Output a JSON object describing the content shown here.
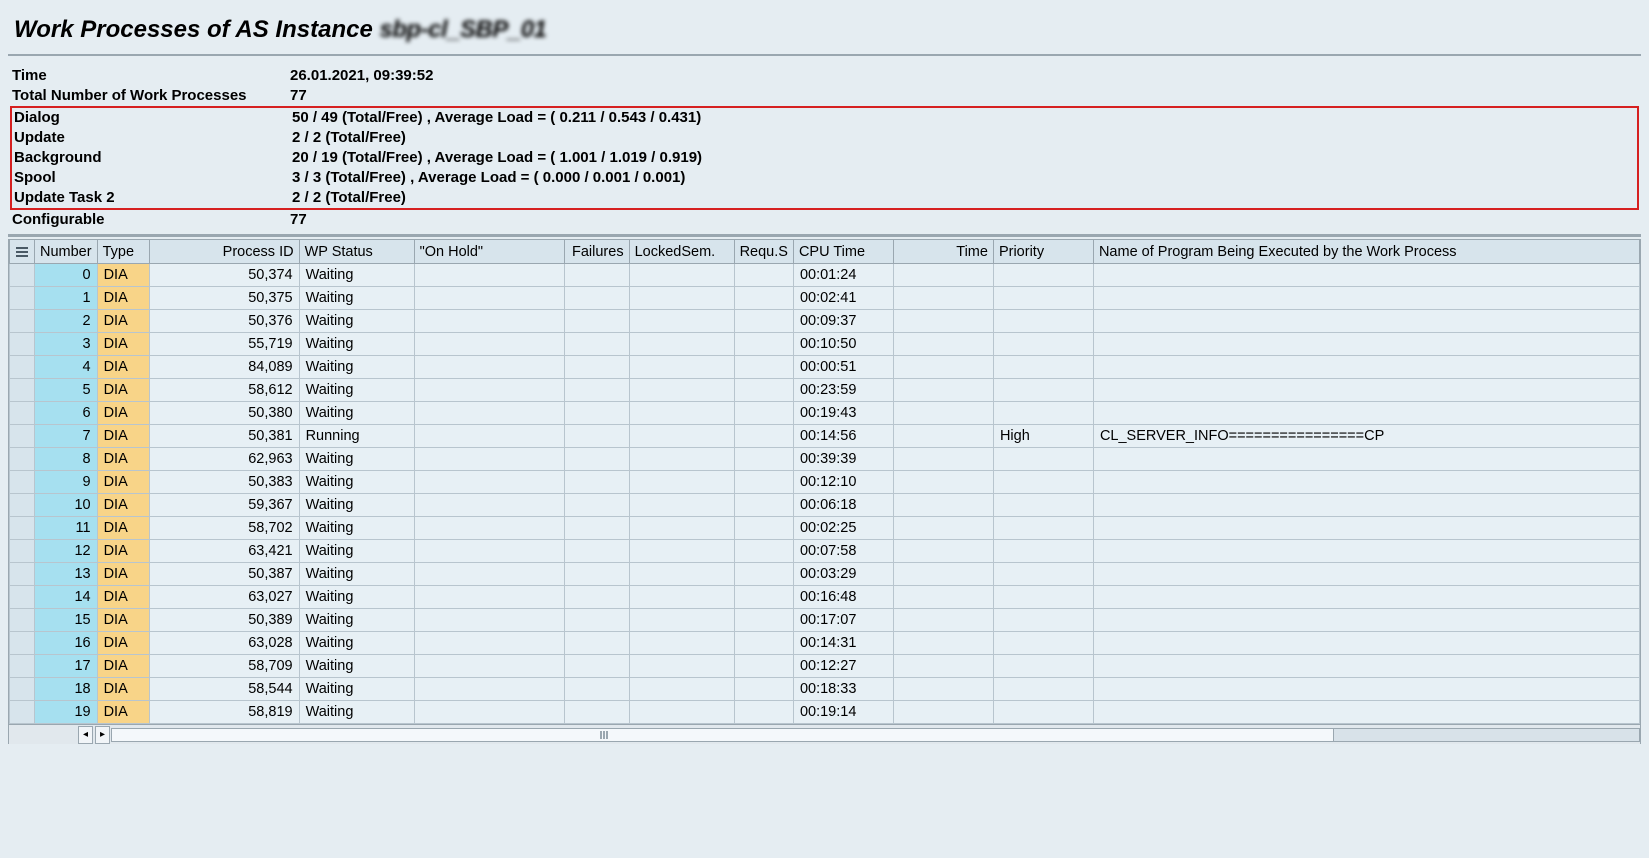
{
  "colors": {
    "page_bg": "#e5edf2",
    "cell_bg": "#e7f0f5",
    "header_bg": "#d7e4ec",
    "num_bg": "#a6e0f0",
    "type_bg": "#f8d488",
    "border": "#9aa7b0",
    "redbox": "#d62020"
  },
  "title": {
    "prefix": "Work Processes of AS Instance ",
    "instance": "sbp-cl_SBP_01"
  },
  "info": {
    "time": {
      "label": "Time",
      "value": "26.01.2021, 09:39:52"
    },
    "total": {
      "label": "Total Number of Work Processes",
      "value": "77"
    },
    "dialog": {
      "label": "Dialog",
      "value": "50 / 49 (Total/Free) , Average Load = ( 0.211 / 0.543 / 0.431)"
    },
    "update": {
      "label": "Update",
      "value": "2 / 2 (Total/Free)"
    },
    "background": {
      "label": "Background",
      "value": "20 / 19 (Total/Free) , Average Load = ( 1.001 / 1.019 / 0.919)"
    },
    "spool": {
      "label": "Spool",
      "value": "3 / 3 (Total/Free) , Average Load = ( 0.000 / 0.001 / 0.001)"
    },
    "update2": {
      "label": "Update Task 2",
      "value": "2 / 2 (Total/Free)"
    },
    "configurable": {
      "label": "Configurable",
      "value": "77"
    }
  },
  "columns": {
    "number": "Number",
    "type": "Type",
    "process_id": "Process ID",
    "wp_status": "WP Status",
    "on_hold": "\"On Hold\"",
    "failures": "Failures",
    "locked_sem": "LockedSem.",
    "requ_s": "Requ.S",
    "cpu_time": "CPU Time",
    "time": "Time",
    "priority": "Priority",
    "program": "Name of Program Being Executed by the Work Process"
  },
  "rows": [
    {
      "num": "0",
      "type": "DIA",
      "pid": "50,374",
      "status": "Waiting",
      "onhold": "",
      "fail": "",
      "locked": "",
      "requs": "",
      "cpu": "00:01:24",
      "time": "",
      "prio": "",
      "prog": ""
    },
    {
      "num": "1",
      "type": "DIA",
      "pid": "50,375",
      "status": "Waiting",
      "onhold": "",
      "fail": "",
      "locked": "",
      "requs": "",
      "cpu": "00:02:41",
      "time": "",
      "prio": "",
      "prog": ""
    },
    {
      "num": "2",
      "type": "DIA",
      "pid": "50,376",
      "status": "Waiting",
      "onhold": "",
      "fail": "",
      "locked": "",
      "requs": "",
      "cpu": "00:09:37",
      "time": "",
      "prio": "",
      "prog": ""
    },
    {
      "num": "3",
      "type": "DIA",
      "pid": "55,719",
      "status": "Waiting",
      "onhold": "",
      "fail": "",
      "locked": "",
      "requs": "",
      "cpu": "00:10:50",
      "time": "",
      "prio": "",
      "prog": ""
    },
    {
      "num": "4",
      "type": "DIA",
      "pid": "84,089",
      "status": "Waiting",
      "onhold": "",
      "fail": "",
      "locked": "",
      "requs": "",
      "cpu": "00:00:51",
      "time": "",
      "prio": "",
      "prog": ""
    },
    {
      "num": "5",
      "type": "DIA",
      "pid": "58,612",
      "status": "Waiting",
      "onhold": "",
      "fail": "",
      "locked": "",
      "requs": "",
      "cpu": "00:23:59",
      "time": "",
      "prio": "",
      "prog": ""
    },
    {
      "num": "6",
      "type": "DIA",
      "pid": "50,380",
      "status": "Waiting",
      "onhold": "",
      "fail": "",
      "locked": "",
      "requs": "",
      "cpu": "00:19:43",
      "time": "",
      "prio": "",
      "prog": ""
    },
    {
      "num": "7",
      "type": "DIA",
      "pid": "50,381",
      "status": "Running",
      "onhold": "",
      "fail": "",
      "locked": "",
      "requs": "",
      "cpu": "00:14:56",
      "time": "",
      "prio": "High",
      "prog": "CL_SERVER_INFO================CP"
    },
    {
      "num": "8",
      "type": "DIA",
      "pid": "62,963",
      "status": "Waiting",
      "onhold": "",
      "fail": "",
      "locked": "",
      "requs": "",
      "cpu": "00:39:39",
      "time": "",
      "prio": "",
      "prog": ""
    },
    {
      "num": "9",
      "type": "DIA",
      "pid": "50,383",
      "status": "Waiting",
      "onhold": "",
      "fail": "",
      "locked": "",
      "requs": "",
      "cpu": "00:12:10",
      "time": "",
      "prio": "",
      "prog": ""
    },
    {
      "num": "10",
      "type": "DIA",
      "pid": "59,367",
      "status": "Waiting",
      "onhold": "",
      "fail": "",
      "locked": "",
      "requs": "",
      "cpu": "00:06:18",
      "time": "",
      "prio": "",
      "prog": ""
    },
    {
      "num": "11",
      "type": "DIA",
      "pid": "58,702",
      "status": "Waiting",
      "onhold": "",
      "fail": "",
      "locked": "",
      "requs": "",
      "cpu": "00:02:25",
      "time": "",
      "prio": "",
      "prog": ""
    },
    {
      "num": "12",
      "type": "DIA",
      "pid": "63,421",
      "status": "Waiting",
      "onhold": "",
      "fail": "",
      "locked": "",
      "requs": "",
      "cpu": "00:07:58",
      "time": "",
      "prio": "",
      "prog": ""
    },
    {
      "num": "13",
      "type": "DIA",
      "pid": "50,387",
      "status": "Waiting",
      "onhold": "",
      "fail": "",
      "locked": "",
      "requs": "",
      "cpu": "00:03:29",
      "time": "",
      "prio": "",
      "prog": ""
    },
    {
      "num": "14",
      "type": "DIA",
      "pid": "63,027",
      "status": "Waiting",
      "onhold": "",
      "fail": "",
      "locked": "",
      "requs": "",
      "cpu": "00:16:48",
      "time": "",
      "prio": "",
      "prog": ""
    },
    {
      "num": "15",
      "type": "DIA",
      "pid": "50,389",
      "status": "Waiting",
      "onhold": "",
      "fail": "",
      "locked": "",
      "requs": "",
      "cpu": "00:17:07",
      "time": "",
      "prio": "",
      "prog": ""
    },
    {
      "num": "16",
      "type": "DIA",
      "pid": "63,028",
      "status": "Waiting",
      "onhold": "",
      "fail": "",
      "locked": "",
      "requs": "",
      "cpu": "00:14:31",
      "time": "",
      "prio": "",
      "prog": ""
    },
    {
      "num": "17",
      "type": "DIA",
      "pid": "58,709",
      "status": "Waiting",
      "onhold": "",
      "fail": "",
      "locked": "",
      "requs": "",
      "cpu": "00:12:27",
      "time": "",
      "prio": "",
      "prog": ""
    },
    {
      "num": "18",
      "type": "DIA",
      "pid": "58,544",
      "status": "Waiting",
      "onhold": "",
      "fail": "",
      "locked": "",
      "requs": "",
      "cpu": "00:18:33",
      "time": "",
      "prio": "",
      "prog": ""
    },
    {
      "num": "19",
      "type": "DIA",
      "pid": "58,819",
      "status": "Waiting",
      "onhold": "",
      "fail": "",
      "locked": "",
      "requs": "",
      "cpu": "00:19:14",
      "time": "",
      "prio": "",
      "prog": ""
    }
  ]
}
